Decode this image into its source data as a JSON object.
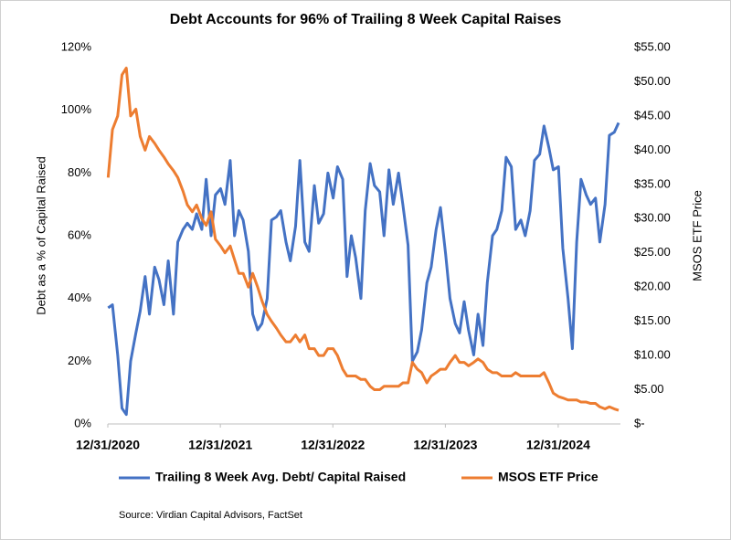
{
  "chart_data": {
    "type": "line",
    "title": "Debt Accounts for 96% of Trailing 8 Week Capital Raises",
    "ylabel": "Debt as a % of Capital Raised",
    "y2label": "MSOS ETF Price",
    "annotation": "Source: Virdian Capital Advisors, FactSet",
    "x": [
      "1/1/2021",
      "1/15/2021",
      "2/1/2021",
      "2/15/2021",
      "3/1/2021",
      "3/15/2021",
      "4/1/2021",
      "4/15/2021",
      "5/1/2021",
      "5/15/2021",
      "6/1/2021",
      "6/15/2021",
      "7/1/2021",
      "7/15/2021",
      "8/1/2021",
      "8/15/2021",
      "9/1/2021",
      "9/15/2021",
      "10/1/2021",
      "10/15/2021",
      "11/1/2021",
      "11/15/2021",
      "12/1/2021",
      "12/15/2021",
      "1/1/2022",
      "1/15/2022",
      "2/1/2022",
      "2/15/2022",
      "3/1/2022",
      "3/15/2022",
      "4/1/2022",
      "4/15/2022",
      "5/1/2022",
      "5/15/2022",
      "6/1/2022",
      "6/15/2022",
      "7/1/2022",
      "7/15/2022",
      "8/1/2022",
      "8/15/2022",
      "9/1/2022",
      "9/15/2022",
      "10/1/2022",
      "10/15/2022",
      "11/1/2022",
      "11/15/2022",
      "12/1/2022",
      "12/15/2022",
      "1/1/2023",
      "1/15/2023",
      "2/1/2023",
      "2/15/2023",
      "3/1/2023",
      "3/15/2023",
      "4/1/2023",
      "4/15/2023",
      "5/1/2023",
      "5/15/2023",
      "6/1/2023",
      "6/15/2023",
      "7/1/2023",
      "7/15/2023",
      "8/1/2023",
      "8/15/2023",
      "9/1/2023",
      "9/15/2023",
      "10/1/2023",
      "10/15/2023",
      "11/1/2023",
      "11/15/2023",
      "12/1/2023",
      "12/15/2023",
      "1/1/2024",
      "1/15/2024",
      "2/1/2024",
      "2/15/2024",
      "3/1/2024",
      "3/15/2024",
      "4/1/2024",
      "4/15/2024",
      "5/1/2024",
      "5/15/2024",
      "6/1/2024",
      "6/15/2024",
      "7/1/2024",
      "7/15/2024",
      "8/1/2024",
      "8/15/2024",
      "9/1/2024",
      "9/15/2024",
      "10/1/2024",
      "10/15/2024",
      "11/1/2024",
      "11/15/2024",
      "12/1/2024",
      "12/15/2024",
      "1/1/2025",
      "1/15/2025",
      "2/1/2025",
      "2/15/2025",
      "3/1/2025",
      "3/15/2025",
      "4/1/2025",
      "4/15/2025",
      "5/1/2025",
      "5/15/2025",
      "6/1/2025",
      "6/15/2025",
      "7/1/2025",
      "7/15/2025"
    ],
    "series": [
      {
        "name": "Trailing 8 Week Avg. Debt/ Capital Raised",
        "color": "#4472c4",
        "axis": "y",
        "values": [
          37,
          38,
          22,
          5,
          3,
          20,
          29,
          36,
          47,
          35,
          50,
          46,
          38,
          52,
          35,
          58,
          62,
          64,
          62,
          67,
          62,
          78,
          60,
          73,
          75,
          70,
          84,
          60,
          68,
          65,
          55,
          35,
          30,
          32,
          40,
          65,
          66,
          68,
          58,
          52,
          63,
          84,
          58,
          55,
          76,
          64,
          67,
          80,
          72,
          82,
          78,
          47,
          60,
          53,
          40,
          68,
          83,
          76,
          74,
          60,
          81,
          70,
          80,
          70,
          57,
          20,
          23,
          30,
          45,
          50,
          62,
          69,
          54,
          40,
          32,
          29,
          39,
          30,
          22,
          35,
          25,
          45,
          60,
          62,
          68,
          85,
          82,
          62,
          65,
          60,
          68,
          84,
          86,
          95,
          88,
          81,
          82,
          56,
          40,
          24,
          58,
          78,
          73,
          70,
          72,
          58,
          70,
          92,
          93,
          96
        ]
      },
      {
        "name": "MSOS ETF Price",
        "color": "#ed7d31",
        "axis": "y2",
        "values": [
          36,
          43,
          45,
          51,
          52,
          45,
          46,
          42,
          40,
          42,
          41,
          40,
          39,
          38,
          37,
          36,
          34,
          32,
          31,
          32,
          30,
          29,
          31,
          27,
          26,
          25,
          26,
          24,
          22,
          22,
          20,
          22,
          20,
          18,
          16,
          15,
          14,
          13,
          12,
          12,
          13,
          12,
          13,
          11,
          11,
          10,
          10,
          11,
          11,
          10,
          8,
          7,
          7,
          7,
          6.5,
          6.5,
          5.5,
          5,
          5,
          5.5,
          5.5,
          5.5,
          5.5,
          6,
          6,
          9,
          8,
          7.5,
          6,
          7,
          7.5,
          8,
          8,
          9,
          10,
          9,
          9,
          8.5,
          9,
          9.5,
          9,
          8,
          7.5,
          7.5,
          7,
          7,
          7,
          7.5,
          7,
          7,
          7,
          7,
          7,
          7.5,
          6,
          4.5,
          4,
          3.8,
          3.5,
          3.5,
          3.5,
          3.2,
          3.2,
          3,
          3,
          2.5,
          2.2,
          2.5,
          2.2,
          2
        ]
      }
    ],
    "xlim": [
      "12/31/2020",
      "7/15/2025"
    ],
    "xticks": [
      "12/31/2020",
      "12/31/2021",
      "12/31/2022",
      "12/31/2023",
      "12/31/2024"
    ],
    "ylim": [
      0,
      120
    ],
    "yticks": [
      {
        "value": 0,
        "label": "0%"
      },
      {
        "value": 20,
        "label": "20%"
      },
      {
        "value": 40,
        "label": "40%"
      },
      {
        "value": 60,
        "label": "60%"
      },
      {
        "value": 80,
        "label": "80%"
      },
      {
        "value": 100,
        "label": "100%"
      },
      {
        "value": 120,
        "label": "120%"
      }
    ],
    "y2lim": [
      0,
      55
    ],
    "y2ticks": [
      {
        "value": 0,
        "label": "$-"
      },
      {
        "value": 5,
        "label": "$5.00"
      },
      {
        "value": 10,
        "label": "$10.00"
      },
      {
        "value": 15,
        "label": "$15.00"
      },
      {
        "value": 20,
        "label": "$20.00"
      },
      {
        "value": 25,
        "label": "$25.00"
      },
      {
        "value": 30,
        "label": "$30.00"
      },
      {
        "value": 35,
        "label": "$35.00"
      },
      {
        "value": 40,
        "label": "$40.00"
      },
      {
        "value": 45,
        "label": "$45.00"
      },
      {
        "value": 50,
        "label": "$50.00"
      },
      {
        "value": 55,
        "label": "$55.00"
      }
    ],
    "grid": false,
    "legend": "bottom"
  }
}
